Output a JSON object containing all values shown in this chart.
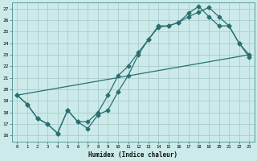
{
  "xlabel": "Humidex (Indice chaleur)",
  "ylabel": "",
  "bg_color": "#cceaea",
  "grid_color": "#aacccc",
  "line_color": "#2a7070",
  "xlim": [
    -0.5,
    23.5
  ],
  "ylim": [
    15.5,
    27.5
  ],
  "xticks": [
    0,
    1,
    2,
    3,
    4,
    5,
    6,
    7,
    8,
    9,
    10,
    11,
    12,
    13,
    14,
    15,
    16,
    17,
    18,
    19,
    20,
    21,
    22,
    23
  ],
  "yticks": [
    16,
    17,
    18,
    19,
    20,
    21,
    22,
    23,
    24,
    25,
    26,
    27
  ],
  "line1_x": [
    0,
    1,
    2,
    3,
    4,
    5,
    6,
    7,
    8,
    9,
    10,
    11,
    12,
    13,
    14,
    15,
    16,
    17,
    18,
    19,
    20,
    21,
    22,
    23
  ],
  "line1_y": [
    19.5,
    18.7,
    17.5,
    17.0,
    16.2,
    18.2,
    17.2,
    16.6,
    17.8,
    18.2,
    19.8,
    21.2,
    23.0,
    24.3,
    25.5,
    25.5,
    25.8,
    26.3,
    26.7,
    27.1,
    26.3,
    25.5,
    24.0,
    23.0
  ],
  "line2_x": [
    0,
    1,
    2,
    3,
    4,
    5,
    6,
    7,
    8,
    9,
    10,
    11,
    12,
    13,
    14,
    15,
    16,
    17,
    18,
    19,
    20,
    21,
    22,
    23
  ],
  "line2_y": [
    19.5,
    18.7,
    17.5,
    17.0,
    16.2,
    18.2,
    17.2,
    17.2,
    18.0,
    19.5,
    21.2,
    22.0,
    23.2,
    24.3,
    25.4,
    25.5,
    25.8,
    26.6,
    27.2,
    26.3,
    25.5,
    25.5,
    24.0,
    22.8
  ],
  "line3_x": [
    0,
    23
  ],
  "line3_y": [
    19.5,
    23.0
  ]
}
